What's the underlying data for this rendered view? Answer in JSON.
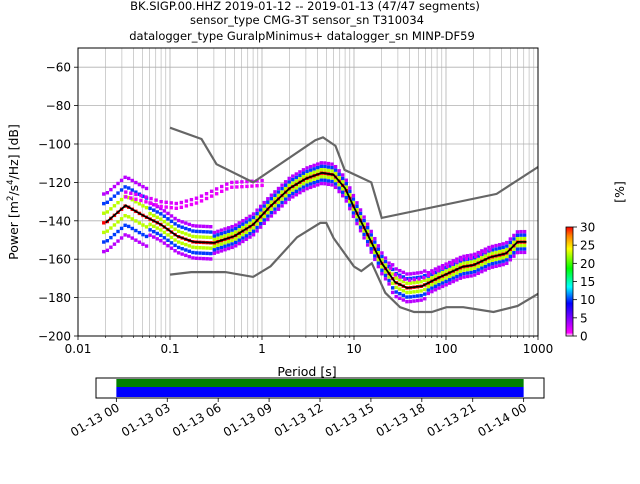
{
  "header": {
    "line1": "BK.SIGP.00.HHZ   2019-01-12 -- 2019-01-13  (47/47 segments)",
    "line2": "sensor_type CMG-3T sensor_sn T310034",
    "line3": "datalogger_type GuralpMinimus+ datalogger_sn MINP-DF59"
  },
  "chart_data": [
    {
      "type": "heatmap",
      "xlabel": "Period [s]",
      "xscale": "log",
      "xlim": [
        0.01,
        1000
      ],
      "x_ticks": [
        0.01,
        0.1,
        1,
        10,
        100,
        1000
      ],
      "x_tick_labels": [
        "0.01",
        "0.1",
        "1",
        "10",
        "100",
        "1000"
      ],
      "ylim": [
        -200,
        -50
      ],
      "y_ticks": [
        -200,
        -180,
        -160,
        -140,
        -120,
        -100,
        -80,
        -60
      ],
      "y_tick_labels": [
        "−200",
        "−180",
        "−160",
        "−140",
        "−120",
        "−100",
        "−80",
        "−60"
      ],
      "grid": true,
      "colorbar": {
        "label": "[%]",
        "range": [
          0,
          30
        ],
        "ticks": [
          0,
          5,
          10,
          15,
          20,
          25,
          30
        ],
        "tick_labels": [
          "0",
          "5",
          "10",
          "15",
          "20",
          "25",
          "30"
        ]
      },
      "noise_model_high": {
        "x": [
          0.1,
          0.22,
          0.32,
          0.8,
          3.8,
          4.6,
          6.3,
          7.9,
          15.4,
          20,
          354.8,
          1000
        ],
        "y": [
          -91.5,
          -97.4,
          -110.5,
          -120,
          -98,
          -96.5,
          -101,
          -113.5,
          -120,
          -138.5,
          -126,
          -112
        ]
      },
      "noise_model_low": {
        "x": [
          0.1,
          0.17,
          0.4,
          0.8,
          1.24,
          2.4,
          4.3,
          5,
          6,
          10,
          12,
          15.6,
          21.9,
          31.6,
          45,
          70,
          101,
          154,
          328,
          600,
          1000
        ],
        "y": [
          -168,
          -166.7,
          -166.7,
          -169.2,
          -163.7,
          -148.6,
          -141.1,
          -141.1,
          -149,
          -163.8,
          -166.2,
          -162.1,
          -177.5,
          -185,
          -187.5,
          -187.5,
          -185,
          -185,
          -187.5,
          -184.4,
          -178
        ]
      },
      "psd_mean": {
        "x": [
          0.02,
          0.025,
          0.033,
          0.05,
          0.08,
          0.12,
          0.18,
          0.3,
          0.5,
          0.8,
          1.2,
          2,
          3,
          4.5,
          6,
          8,
          10,
          14,
          20,
          28,
          38,
          55,
          80,
          110,
          150,
          200,
          300,
          450,
          600,
          750
        ],
        "y": [
          -141,
          -137,
          -132,
          -137,
          -142,
          -148,
          -151,
          -151.5,
          -148,
          -142,
          -133,
          -123,
          -118,
          -115,
          -116,
          -123,
          -133,
          -147,
          -162,
          -172,
          -175,
          -174,
          -170,
          -167,
          -164,
          -163,
          -159,
          -157,
          -151,
          -151
        ]
      },
      "secondary_branch": {
        "x": [
          0.033,
          0.05,
          0.08,
          0.12,
          0.2,
          0.3,
          0.45,
          0.7,
          1
        ],
        "y": [
          -125,
          -127,
          -130,
          -131,
          -128,
          -124,
          -120,
          -119.5,
          -119
        ]
      }
    },
    {
      "type": "timeline",
      "x_ticks": [
        "01-13 00",
        "01-13 03",
        "01-13 06",
        "01-13 09",
        "01-13 12",
        "01-13 15",
        "01-13 18",
        "01-13 21",
        "01-14 00"
      ],
      "x_tick_hours": [
        0,
        3,
        6,
        9,
        12,
        15,
        18,
        21,
        24
      ],
      "xlim_hours": [
        -1.2,
        25.2
      ],
      "segments": [
        {
          "start_hour": 0,
          "end_hour": 24
        }
      ],
      "colors": {
        "upper": "#008000",
        "lower": "#0000ff"
      }
    }
  ]
}
